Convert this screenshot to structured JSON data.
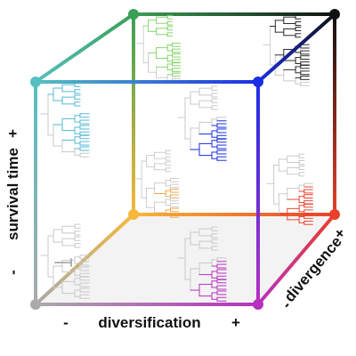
{
  "axes": {
    "diversification": {
      "label": "diversification",
      "minus": "-",
      "plus": "+"
    },
    "survival": {
      "label": "survival time",
      "minus": "-",
      "plus": "+"
    },
    "divergence": {
      "label": "divergence",
      "minus": "-",
      "plus": "+"
    }
  },
  "colors": {
    "gray": "#aaaaaa",
    "magenta": "#b830c0",
    "orange": "#f5b83a",
    "red": "#e8402a",
    "cyan": "#55c0c0",
    "blue": "#1a2ee6",
    "green": "#3aa055",
    "black": "#111111",
    "tree_gray": "#c8c8c8",
    "floor": "#f3f3f3"
  },
  "trees": [
    {
      "name": "tree-gray-bottom-left",
      "accent": "#9a9a9a"
    },
    {
      "name": "tree-magenta-bottom-front",
      "accent": "#b830c0"
    },
    {
      "name": "tree-orange-bottom-back",
      "accent": "#f0a040"
    },
    {
      "name": "tree-red-bottom-back",
      "accent": "#e8402a"
    },
    {
      "name": "tree-cyan-top-front",
      "accent": "#55b8d8"
    },
    {
      "name": "tree-blue-top-front",
      "accent": "#1a2ee6"
    },
    {
      "name": "tree-green-top-back",
      "accent": "#7ad060"
    },
    {
      "name": "tree-black-top-back",
      "accent": "#222222"
    }
  ]
}
